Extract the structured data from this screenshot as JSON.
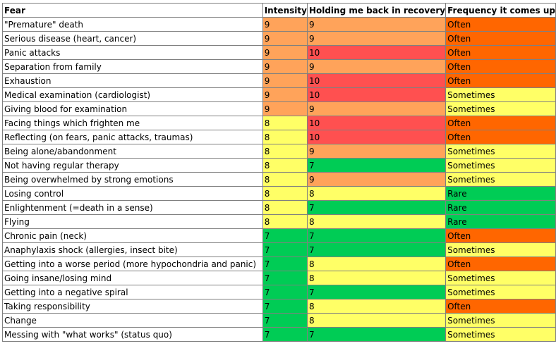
{
  "colors": {
    "very_high": "#ff5050",
    "high": "#ffa35a",
    "medium": "#ffff66",
    "low": "#00cc55",
    "often": "#ff6600",
    "sometimes": "#ffff66",
    "rare": "#00cc55"
  },
  "table": {
    "headers": [
      "Fear",
      "Intensity",
      "Holding me back in recovery",
      "Frequency it comes up"
    ],
    "rows": [
      [
        "\"Premature\" death",
        "9",
        "9",
        "Often"
      ],
      [
        "Serious disease (heart, cancer)",
        "9",
        "9",
        "Often"
      ],
      [
        "Panic attacks",
        "9",
        "10",
        "Often"
      ],
      [
        "Separation from family",
        "9",
        "9",
        "Often"
      ],
      [
        "Exhaustion",
        "9",
        "10",
        "Often"
      ],
      [
        "Medical examination (cardiologist)",
        "9",
        "10",
        "Sometimes"
      ],
      [
        "Giving blood for examination",
        "9",
        "9",
        "Sometimes"
      ],
      [
        "Facing things which frighten me",
        "8",
        "10",
        "Often"
      ],
      [
        "Reflecting (on fears, panic attacks, traumas)",
        "8",
        "10",
        "Often"
      ],
      [
        "Being alone/abandonment",
        "8",
        "9",
        "Sometimes"
      ],
      [
        "Not having regular therapy",
        "8",
        "7",
        "Sometimes"
      ],
      [
        "Being overwhelmed by strong emotions",
        "8",
        "9",
        "Sometimes"
      ],
      [
        "Losing control",
        "8",
        "8",
        "Rare"
      ],
      [
        "Enlightenment (=death in a sense)",
        "8",
        "7",
        "Rare"
      ],
      [
        "Flying",
        "8",
        "8",
        "Rare"
      ],
      [
        "Chronic pain (neck)",
        "7",
        "7",
        "Often"
      ],
      [
        "Anaphylaxis shock (allergies, insect bite)",
        "7",
        "7",
        "Sometimes"
      ],
      [
        "Getting into a worse period (more hypochondria and panic)",
        "7",
        "8",
        "Often"
      ],
      [
        "Going insane/losing mind",
        "7",
        "8",
        "Sometimes"
      ],
      [
        "Getting into a negative spiral",
        "7",
        "7",
        "Sometimes"
      ],
      [
        "Taking responsibility",
        "7",
        "8",
        "Often"
      ],
      [
        "Change",
        "7",
        "8",
        "Sometimes"
      ],
      [
        "Messing with \"what works\" (status quo)",
        "7",
        "7",
        "Sometimes"
      ]
    ]
  }
}
